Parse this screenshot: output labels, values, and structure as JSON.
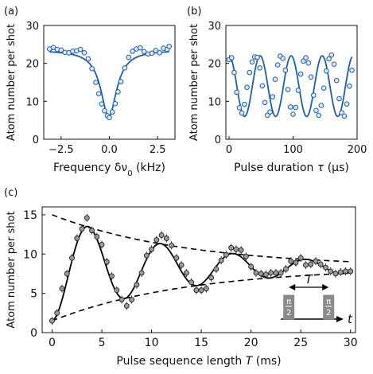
{
  "chart_data": [
    {
      "panel": "(a)",
      "type": "scatter",
      "xlabel": "Frequency δν",
      "xlabel_sub": "0",
      "xlabel_unit": " (kHz)",
      "ylabel": "Atom number per shot",
      "xlim": [
        -3.4,
        3.4
      ],
      "ylim": [
        0,
        30
      ],
      "xticks": [
        -2.5,
        0.0,
        2.5
      ],
      "xtick_labels": [
        "−2.5",
        "0.0",
        "2.5"
      ],
      "yticks": [
        0,
        10,
        20,
        30
      ],
      "ytick_labels": [
        "0",
        "10",
        "20",
        "30"
      ],
      "points": [
        [
          -3.1,
          23.8
        ],
        [
          -2.9,
          24.2
        ],
        [
          -2.7,
          23.7
        ],
        [
          -2.5,
          23.5
        ],
        [
          -2.3,
          22.9
        ],
        [
          -2.1,
          22.8
        ],
        [
          -1.9,
          23.2
        ],
        [
          -1.7,
          23.3
        ],
        [
          -1.5,
          23.7
        ],
        [
          -1.3,
          22.8
        ],
        [
          -1.1,
          21.2
        ],
        [
          -0.9,
          18.6
        ],
        [
          -0.7,
          15.0
        ],
        [
          -0.55,
          12.0
        ],
        [
          -0.4,
          9.3
        ],
        [
          -0.25,
          7.5
        ],
        [
          -0.1,
          6.2
        ],
        [
          0.0,
          5.7
        ],
        [
          0.15,
          7.2
        ],
        [
          0.3,
          9.4
        ],
        [
          0.45,
          12.5
        ],
        [
          0.6,
          15.2
        ],
        [
          0.8,
          18.8
        ],
        [
          1.0,
          21.6
        ],
        [
          1.2,
          23.2
        ],
        [
          1.4,
          23.8
        ],
        [
          1.6,
          24.1
        ],
        [
          1.8,
          23.1
        ],
        [
          2.0,
          22.5
        ],
        [
          2.2,
          22.7
        ],
        [
          2.4,
          23.4
        ],
        [
          2.6,
          22.8
        ],
        [
          2.8,
          24.0
        ],
        [
          3.0,
          23.7
        ],
        [
          3.1,
          24.5
        ]
      ],
      "fit": {
        "model": "lorentzian dip",
        "baseline": 23.5,
        "depth": 17.6,
        "center": -0.03,
        "hwhm": 0.5
      }
    },
    {
      "panel": "(b)",
      "type": "scatter",
      "xlabel": "Pulse duration ",
      "xlabel_sym": "τ",
      "xlabel_unit": " (μs)",
      "ylabel": "Atom number per shot",
      "xlim": [
        -5,
        200
      ],
      "ylim": [
        0,
        30
      ],
      "xticks": [
        0,
        100,
        200
      ],
      "xtick_labels": [
        "0",
        "100",
        "200"
      ],
      "yticks": [
        0,
        10,
        20,
        30
      ],
      "ytick_labels": [
        "0",
        "10",
        "20",
        "30"
      ],
      "points": [
        [
          0,
          21.0
        ],
        [
          4,
          21.5
        ],
        [
          8,
          17.6
        ],
        [
          12,
          12.4
        ],
        [
          16,
          8.3
        ],
        [
          20,
          6.9
        ],
        [
          24,
          9.2
        ],
        [
          28,
          13.7
        ],
        [
          32,
          17.6
        ],
        [
          36,
          20.4
        ],
        [
          40,
          21.7
        ],
        [
          44,
          21.6
        ],
        [
          48,
          18.8
        ],
        [
          52,
          14.1
        ],
        [
          56,
          9.7
        ],
        [
          60,
          6.3
        ],
        [
          64,
          7.2
        ],
        [
          68,
          11.2
        ],
        [
          72,
          15.8
        ],
        [
          76,
          19.6
        ],
        [
          80,
          21.9
        ],
        [
          84,
          21.3
        ],
        [
          88,
          18.2
        ],
        [
          92,
          13.1
        ],
        [
          96,
          8.5
        ],
        [
          100,
          6.6
        ],
        [
          104,
          8.4
        ],
        [
          108,
          12.9
        ],
        [
          112,
          17.2
        ],
        [
          116,
          20.6
        ],
        [
          120,
          21.5
        ],
        [
          124,
          20.1
        ],
        [
          128,
          16.4
        ],
        [
          132,
          11.6
        ],
        [
          136,
          7.6
        ],
        [
          140,
          6.3
        ],
        [
          144,
          8.9
        ],
        [
          148,
          13.5
        ],
        [
          152,
          18.0
        ],
        [
          156,
          21.2
        ],
        [
          160,
          22.2
        ],
        [
          164,
          19.8
        ],
        [
          168,
          15.5
        ],
        [
          172,
          10.7
        ],
        [
          176,
          7.0
        ],
        [
          180,
          6.1
        ],
        [
          184,
          9.3
        ],
        [
          188,
          14.0
        ],
        [
          192,
          18.2
        ]
      ],
      "fit": {
        "model": "cosine",
        "offset": 14.0,
        "amplitude": 8.0,
        "period": 48.5
      }
    },
    {
      "panel": "(c)",
      "type": "scatter",
      "xlabel": "Pulse sequence length ",
      "xlabel_sym": "T",
      "xlabel_unit": " (ms)",
      "ylabel": "Atom number per shot",
      "xlim": [
        -1,
        30.5
      ],
      "ylim": [
        0,
        16
      ],
      "xticks": [
        0,
        5,
        10,
        15,
        20,
        25,
        30
      ],
      "xtick_labels": [
        "0",
        "5",
        "10",
        "15",
        "20",
        "25",
        "30"
      ],
      "yticks": [
        0,
        5,
        10,
        15
      ],
      "ytick_labels": [
        "0",
        "5",
        "10",
        "15"
      ],
      "points": [
        [
          0.0,
          1.5
        ],
        [
          0.5,
          2.5
        ],
        [
          1.0,
          5.6
        ],
        [
          1.5,
          7.5
        ],
        [
          2.0,
          9.5
        ],
        [
          2.5,
          12.0
        ],
        [
          3.0,
          13.2
        ],
        [
          3.5,
          14.6
        ],
        [
          4.0,
          13.0
        ],
        [
          4.5,
          12.2
        ],
        [
          5.0,
          11.2
        ],
        [
          5.5,
          9.0
        ],
        [
          6.0,
          7.2
        ],
        [
          6.5,
          5.4
        ],
        [
          7.0,
          4.2
        ],
        [
          7.5,
          3.4
        ],
        [
          8.0,
          4.2
        ],
        [
          8.5,
          6.1
        ],
        [
          9.0,
          7.6
        ],
        [
          9.5,
          9.8
        ],
        [
          10.0,
          10.6
        ],
        [
          10.5,
          11.8
        ],
        [
          11.0,
          12.4
        ],
        [
          11.5,
          12.0
        ],
        [
          12.0,
          11.1
        ],
        [
          12.5,
          9.5
        ],
        [
          13.0,
          8.6
        ],
        [
          13.5,
          7.6
        ],
        [
          14.0,
          6.4
        ],
        [
          14.5,
          5.4
        ],
        [
          15.0,
          5.4
        ],
        [
          15.5,
          5.6
        ],
        [
          16.0,
          7.0
        ],
        [
          16.5,
          8.1
        ],
        [
          17.0,
          9.2
        ],
        [
          17.5,
          9.9
        ],
        [
          18.0,
          10.8
        ],
        [
          18.5,
          10.6
        ],
        [
          19.0,
          10.5
        ],
        [
          19.5,
          9.7
        ],
        [
          20.0,
          8.4
        ],
        [
          20.5,
          7.6
        ],
        [
          21.0,
          7.5
        ],
        [
          21.5,
          7.4
        ],
        [
          22.0,
          7.6
        ],
        [
          22.5,
          7.6
        ],
        [
          23.0,
          7.6
        ],
        [
          23.5,
          8.1
        ],
        [
          24.0,
          9.1
        ],
        [
          24.5,
          8.9
        ],
        [
          25.0,
          9.5
        ],
        [
          25.5,
          8.6
        ],
        [
          26.0,
          8.7
        ],
        [
          26.5,
          9.1
        ],
        [
          27.0,
          8.7
        ],
        [
          27.5,
          8.3
        ],
        [
          28.0,
          7.8
        ],
        [
          28.5,
          7.5
        ],
        [
          29.0,
          7.7
        ],
        [
          29.5,
          7.8
        ],
        [
          30.0,
          7.8
        ]
      ],
      "fit": {
        "model": "damped cosine",
        "offset": 8.3,
        "amplitude": 6.8,
        "period": 7.3,
        "decay": 13.5
      },
      "envelope": {
        "upper_start": 15.0,
        "lower_start": 1.5,
        "asymptote": 8.3,
        "decay": 13.5
      },
      "inset": {
        "period_label": "T",
        "pulse_label": "π/2",
        "pulse_numerator": "π",
        "pulse_denominator": "2",
        "time_label": "t",
        "pulse_times": [
          23.8,
          27.8
        ],
        "arrow_start": 23.0,
        "arrow_end": 29.3
      }
    }
  ]
}
